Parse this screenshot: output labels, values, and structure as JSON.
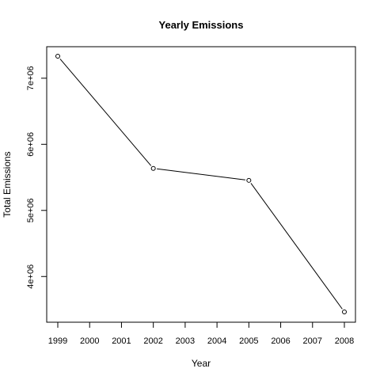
{
  "chart_data": {
    "type": "line",
    "title": "Yearly Emissions",
    "xlabel": "Year",
    "ylabel": "Total Emissions",
    "x_ticks": [
      "1999",
      "2000",
      "2001",
      "2002",
      "2003",
      "2004",
      "2005",
      "2006",
      "2007",
      "2008"
    ],
    "y_ticks": [
      "4e+06",
      "5e+06",
      "6e+06",
      "7e+06"
    ],
    "x": [
      1999,
      2002,
      2005,
      2008
    ],
    "series": [
      {
        "values": [
          7332967,
          5635780,
          5454703,
          3464206
        ]
      }
    ],
    "xlim": [
      1999,
      2008
    ],
    "ylim": [
      3464206,
      7332967
    ],
    "grid": false,
    "line_color": "#000000",
    "marker": "open-circle"
  }
}
